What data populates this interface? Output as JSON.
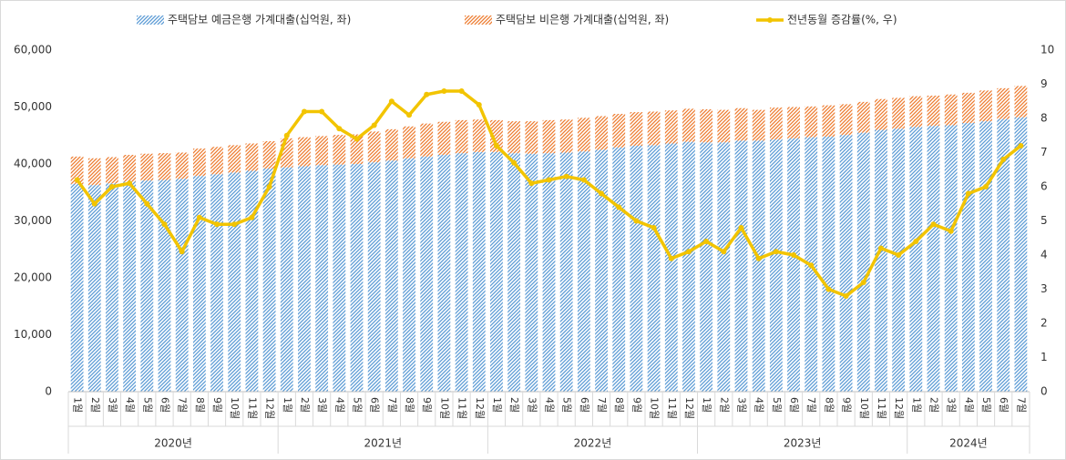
{
  "chart_data": {
    "type": "bar",
    "stacked": true,
    "categories": [
      "1월",
      "2월",
      "3월",
      "4월",
      "5월",
      "6월",
      "7월",
      "8월",
      "9월",
      "10월",
      "11월",
      "12월",
      "1월",
      "2월",
      "3월",
      "4월",
      "5월",
      "6월",
      "7월",
      "8월",
      "9월",
      "10월",
      "11월",
      "12월",
      "1월",
      "2월",
      "3월",
      "4월",
      "5월",
      "6월",
      "7월",
      "8월",
      "9월",
      "10월",
      "11월",
      "12월",
      "1월",
      "2월",
      "3월",
      "4월",
      "5월",
      "6월",
      "7월",
      "8월",
      "9월",
      "10월",
      "11월",
      "12월",
      "1월",
      "2월",
      "3월",
      "4월",
      "5월",
      "6월",
      "7월"
    ],
    "groups": [
      "2020년",
      "2021년",
      "2022년",
      "2023년",
      "2024년"
    ],
    "series": [
      {
        "name": "주택담보 예금은행 가계대출(십억원, 좌)",
        "color": "#5b9bd5",
        "type": "bar",
        "values": [
          36500,
          36300,
          36600,
          36900,
          37100,
          37200,
          37400,
          37900,
          38200,
          38500,
          38800,
          39200,
          39400,
          39600,
          39800,
          39900,
          40000,
          40300,
          40600,
          41000,
          41300,
          41600,
          41900,
          42100,
          42100,
          41900,
          41800,
          41900,
          42000,
          42200,
          42500,
          42900,
          43200,
          43300,
          43600,
          43900,
          43800,
          43800,
          44100,
          44100,
          44300,
          44500,
          44700,
          44800,
          45100,
          45500,
          46000,
          46200,
          46500,
          46700,
          46800,
          47200,
          47500,
          47900,
          48200
        ]
      },
      {
        "name": "주택담보 비은행 가계대출(십억원, 좌)",
        "color": "#ed7d31",
        "type": "bar",
        "values": [
          4800,
          4700,
          4600,
          4700,
          4700,
          4700,
          4600,
          4800,
          4800,
          4800,
          4800,
          4800,
          5100,
          5100,
          5100,
          5200,
          5200,
          5400,
          5500,
          5600,
          5800,
          5800,
          5800,
          5700,
          5600,
          5600,
          5700,
          5800,
          5800,
          5900,
          5900,
          5900,
          5900,
          5900,
          5800,
          5800,
          5800,
          5700,
          5700,
          5400,
          5600,
          5500,
          5400,
          5500,
          5400,
          5400,
          5400,
          5400,
          5400,
          5300,
          5400,
          5300,
          5400,
          5400,
          5500
        ]
      },
      {
        "name": "전년동월 증감률(%, 우)",
        "color": "#f2c400",
        "type": "line",
        "axis": "y2",
        "values": [
          6.2,
          5.5,
          6.0,
          6.1,
          5.5,
          4.9,
          4.1,
          5.1,
          4.9,
          4.9,
          5.1,
          6.0,
          7.5,
          8.2,
          8.2,
          7.7,
          7.4,
          7.8,
          8.5,
          8.1,
          8.7,
          8.8,
          8.8,
          8.4,
          7.2,
          6.7,
          6.1,
          6.2,
          6.3,
          6.2,
          5.8,
          5.4,
          5.0,
          4.8,
          3.9,
          4.1,
          4.4,
          4.1,
          4.8,
          3.9,
          4.1,
          4.0,
          3.7,
          3.0,
          2.8,
          3.2,
          4.2,
          4.0,
          4.4,
          4.9,
          4.7,
          5.8,
          6.0,
          6.8,
          7.2
        ]
      }
    ],
    "ylim": [
      0,
      60000
    ],
    "yticks": [
      0,
      {
        "value": 10000,
        "label": "10,000"
      },
      {
        "value": 20000,
        "label": "20,000"
      },
      {
        "value": 30000,
        "label": "30,000"
      },
      {
        "value": 40000,
        "label": "40,000"
      },
      {
        "value": 50000,
        "label": "50,000"
      },
      {
        "value": 60000,
        "label": "60,000"
      }
    ],
    "y2lim": [
      0,
      10
    ],
    "y2ticks": [
      0,
      1,
      2,
      3,
      4,
      5,
      6,
      7,
      8,
      9,
      10
    ],
    "grid": false,
    "legend": "top"
  }
}
